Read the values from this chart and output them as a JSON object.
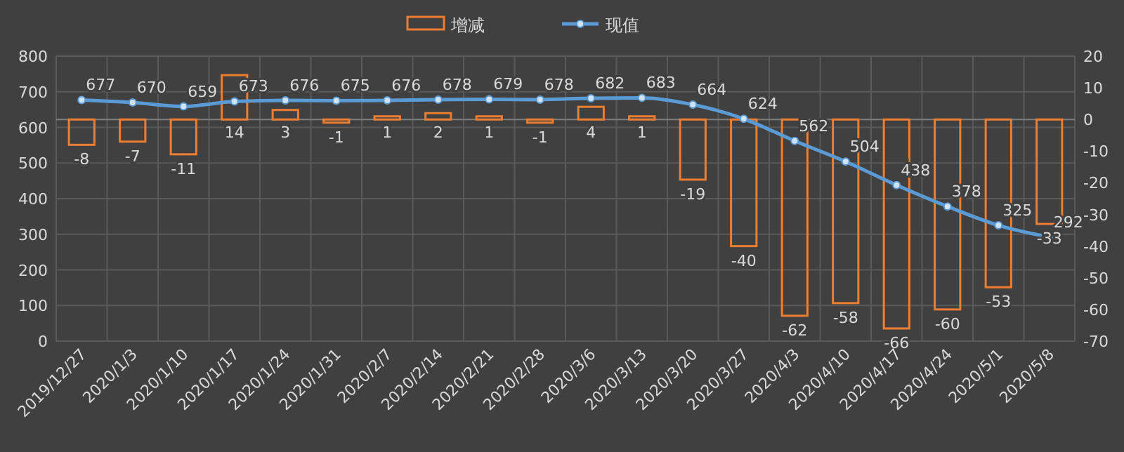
{
  "chart_data": {
    "type": "line",
    "categories": [
      "2019/12/27",
      "2020/1/3",
      "2020/1/10",
      "2020/1/17",
      "2020/1/24",
      "2020/1/31",
      "2020/2/7",
      "2020/2/14",
      "2020/2/21",
      "2020/2/28",
      "2020/3/6",
      "2020/3/13",
      "2020/3/20",
      "2020/3/27",
      "2020/4/3",
      "2020/4/10",
      "2020/4/17",
      "2020/4/24",
      "2020/5/1",
      "2020/5/8"
    ],
    "series": [
      {
        "name": "增减",
        "type": "bar",
        "axis": "y2",
        "color": "#ed7d31",
        "values": [
          -8,
          -7,
          -11,
          14,
          3,
          -1,
          1,
          2,
          1,
          -1,
          4,
          1,
          -19,
          -40,
          -62,
          -58,
          -66,
          -60,
          -53,
          -33
        ]
      },
      {
        "name": "现值",
        "axis": "y",
        "color": "#5b9bd5",
        "values": [
          677,
          670,
          659,
          673,
          676,
          675,
          676,
          678,
          679,
          678,
          682,
          683,
          664,
          624,
          562,
          504,
          438,
          378,
          325,
          292
        ]
      }
    ],
    "ylim": [
      0,
      800
    ],
    "yticks": [
      0,
      100,
      200,
      300,
      400,
      500,
      600,
      700,
      800
    ],
    "y2lim": [
      -70,
      20
    ],
    "y2ticks": [
      -70,
      -60,
      -50,
      -40,
      -30,
      -20,
      -10,
      0,
      10,
      20
    ],
    "grid": true,
    "legend": "top",
    "marker": "circle",
    "line_style": "solid",
    "data_labels": true
  }
}
